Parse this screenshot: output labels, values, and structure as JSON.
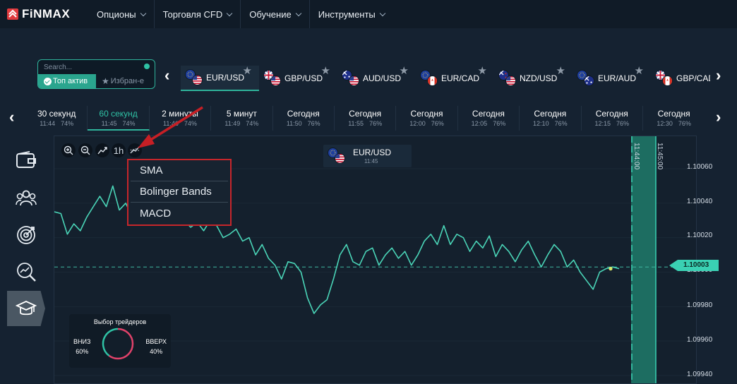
{
  "brand": {
    "name": "FiNMAX",
    "accent": "#2fb39b",
    "logo_color": "#e03a3e"
  },
  "nav": {
    "items": [
      {
        "label": "Опционы"
      },
      {
        "label": "Торговля CFD"
      },
      {
        "label": "Обучение"
      },
      {
        "label": "Инструменты"
      }
    ]
  },
  "search": {
    "placeholder": "Search...",
    "tab_top": "Топ актив",
    "tab_favorites": "Избран-е"
  },
  "assets": [
    {
      "name": "EUR/USD",
      "flags": [
        "eu-flag-icon",
        "us-flag-icon"
      ],
      "active": true
    },
    {
      "name": "GBP/USD",
      "flags": [
        "uk-flag-icon",
        "us-flag-icon"
      ]
    },
    {
      "name": "AUD/USD",
      "flags": [
        "au-flag-icon",
        "us-flag-icon"
      ]
    },
    {
      "name": "EUR/CAD",
      "flags": [
        "eu-flag-icon",
        "ca-flag-icon"
      ]
    },
    {
      "name": "NZD/USD",
      "flags": [
        "nz-flag-icon",
        "us-flag-icon"
      ]
    },
    {
      "name": "EUR/AUD",
      "flags": [
        "eu-flag-icon",
        "au-flag-icon"
      ]
    },
    {
      "name": "GBP/CAD",
      "flags": [
        "uk-flag-icon",
        "ca-flag-icon"
      ]
    }
  ],
  "expiries": [
    {
      "label": "30 секунд",
      "time": "11:44",
      "pct": "74%"
    },
    {
      "label": "60 секунд",
      "time": "11:45",
      "pct": "74%",
      "active": true
    },
    {
      "label": "2 минуты",
      "time": "11:46",
      "pct": "74%"
    },
    {
      "label": "5 минут",
      "time": "11:49",
      "pct": "74%"
    },
    {
      "label": "Сегодня",
      "time": "11:50",
      "pct": "76%"
    },
    {
      "label": "Сегодня",
      "time": "11:55",
      "pct": "76%"
    },
    {
      "label": "Сегодня",
      "time": "12:00",
      "pct": "76%"
    },
    {
      "label": "Сегодня",
      "time": "12:05",
      "pct": "76%"
    },
    {
      "label": "Сегодня",
      "time": "12:10",
      "pct": "76%"
    },
    {
      "label": "Сегодня",
      "time": "12:15",
      "pct": "76%"
    },
    {
      "label": "Сегодня",
      "time": "12:30",
      "pct": "76%"
    }
  ],
  "sidebar": {
    "items": [
      {
        "icon": "wallet-icon"
      },
      {
        "icon": "users-icon"
      },
      {
        "icon": "target-icon"
      },
      {
        "icon": "analytics-icon"
      },
      {
        "icon": "graduation-cap-icon",
        "active": true
      }
    ]
  },
  "toolbar": {
    "zoom_in_icon": "zoom-in-icon",
    "zoom_out_icon": "zoom-out-icon",
    "chart_type_icon": "chart-line-icon",
    "timeframe": "1h",
    "indicators_icon": "indicators-icon"
  },
  "chart_asset": {
    "name": "EUR/USD",
    "time": "11:45"
  },
  "indicator_menu": {
    "items": [
      "SMA",
      "Bolinger Bands",
      "MACD"
    ]
  },
  "traders": {
    "title": "Выбор трейдеров",
    "down_label": "ВНИЗ",
    "down_pct": "60%",
    "up_label": "ВВЕРХ",
    "up_pct": "40%",
    "down_value": 60,
    "up_value": 40
  },
  "price_axis": {
    "ticks": [
      "1.10060",
      "1.10040",
      "1.10020",
      "1.10000",
      "1.09980",
      "1.09960",
      "1.09940"
    ],
    "current_price": "1.10003"
  },
  "timeline": {
    "expiry_1": "11:44:00",
    "expiry_2": "11:45:00"
  },
  "chart_data": {
    "type": "line",
    "ylim": [
      1.0994,
      1.1006
    ],
    "current": 1.10003,
    "series": [
      {
        "values": [
          1.10035,
          1.10034,
          1.10022,
          1.10028,
          1.10024,
          1.10032,
          1.10038,
          1.10044,
          1.10038,
          1.1005,
          1.10036,
          1.1004,
          1.10032,
          1.10035,
          1.10028,
          1.1004,
          1.1003,
          1.10035,
          1.10031,
          1.10034,
          1.1003,
          1.10026,
          1.10029,
          1.10024,
          1.1003,
          1.10027,
          1.1002,
          1.10022,
          1.10025,
          1.10018,
          1.1002,
          1.1001,
          1.10016,
          1.10008,
          1.10004,
          1.09996,
          1.10006,
          1.10005,
          1.1,
          1.09985,
          1.09976,
          1.09981,
          1.09984,
          1.09996,
          1.1001,
          1.10016,
          1.10006,
          1.10004,
          1.10012,
          1.10014,
          1.10004,
          1.1001,
          1.10014,
          1.10008,
          1.10012,
          1.10004,
          1.1001,
          1.10018,
          1.10022,
          1.10016,
          1.10027,
          1.10016,
          1.10022,
          1.1002,
          1.10012,
          1.10018,
          1.10014,
          1.10021,
          1.10009,
          1.10016,
          1.10012,
          1.10006,
          1.10013,
          1.10018,
          1.1001,
          1.10003,
          1.1001,
          1.10016,
          1.10012,
          1.10003,
          1.10007,
          1.1,
          1.09995,
          1.0999,
          1.1,
          1.10002,
          1.10003,
          1.10002
        ]
      }
    ]
  }
}
